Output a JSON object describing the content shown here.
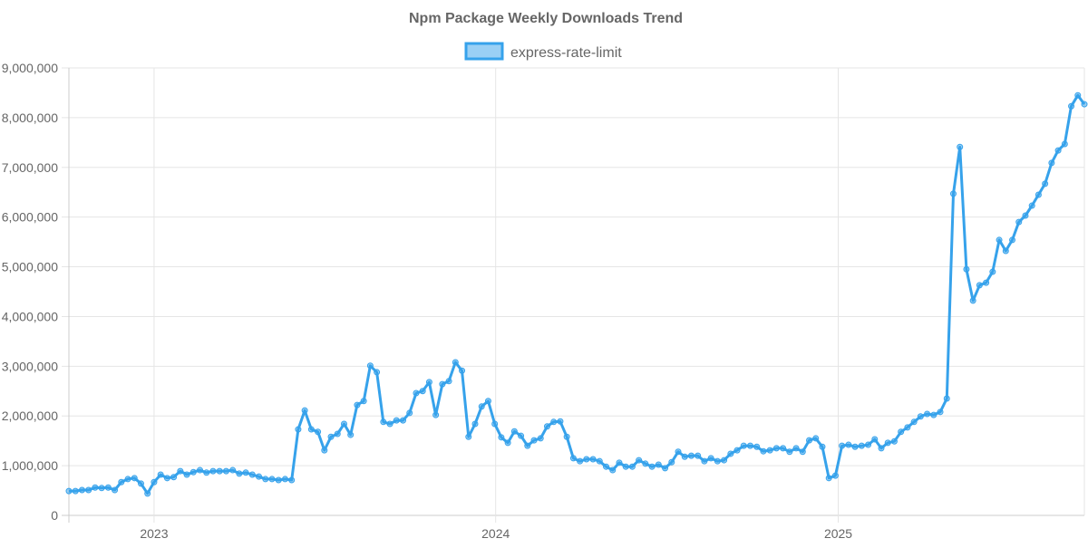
{
  "chart_data": {
    "type": "line",
    "title": "Npm Package Weekly Downloads Trend",
    "xlabel": "",
    "ylabel": "",
    "ylim": [
      0,
      9000000
    ],
    "y_ticks": [
      0,
      1000000,
      2000000,
      3000000,
      4000000,
      5000000,
      6000000,
      7000000,
      8000000,
      9000000
    ],
    "y_tick_labels": [
      "0",
      "1,000,000",
      "2,000,000",
      "3,000,000",
      "4,000,000",
      "5,000,000",
      "6,000,000",
      "7,000,000",
      "8,000,000",
      "9,000,000"
    ],
    "x_tick_labels": [
      "2023",
      "2024",
      "2025"
    ],
    "x_tick_dates": [
      "2023-01-01",
      "2024-01-01",
      "2025-01-01"
    ],
    "x_start_date": "2022-10-02",
    "x_interval_days": 7,
    "grid": true,
    "legend_position": "top",
    "colors": {
      "line": "#36a2eb",
      "fill": "rgba(54,162,235,0.5)",
      "grid": "#e5e5e5",
      "text": "#666666"
    },
    "series": [
      {
        "name": "express-rate-limit",
        "values": [
          490000,
          490000,
          510000,
          510000,
          560000,
          550000,
          560000,
          510000,
          670000,
          730000,
          750000,
          640000,
          440000,
          670000,
          820000,
          750000,
          770000,
          890000,
          820000,
          870000,
          910000,
          860000,
          890000,
          890000,
          890000,
          910000,
          840000,
          860000,
          820000,
          780000,
          730000,
          730000,
          710000,
          730000,
          710000,
          1730000,
          2110000,
          1730000,
          1680000,
          1310000,
          1580000,
          1640000,
          1840000,
          1620000,
          2220000,
          2300000,
          3010000,
          2880000,
          1880000,
          1840000,
          1910000,
          1910000,
          2060000,
          2460000,
          2500000,
          2680000,
          2020000,
          2640000,
          2700000,
          3080000,
          2910000,
          1580000,
          1840000,
          2190000,
          2300000,
          1840000,
          1570000,
          1460000,
          1690000,
          1600000,
          1400000,
          1510000,
          1550000,
          1790000,
          1880000,
          1890000,
          1580000,
          1150000,
          1090000,
          1130000,
          1130000,
          1090000,
          980000,
          910000,
          1060000,
          980000,
          980000,
          1110000,
          1040000,
          980000,
          1020000,
          950000,
          1070000,
          1280000,
          1180000,
          1200000,
          1200000,
          1090000,
          1150000,
          1090000,
          1110000,
          1240000,
          1310000,
          1400000,
          1400000,
          1380000,
          1290000,
          1310000,
          1350000,
          1350000,
          1280000,
          1350000,
          1280000,
          1510000,
          1550000,
          1380000,
          750000,
          800000,
          1400000,
          1420000,
          1380000,
          1400000,
          1420000,
          1530000,
          1350000,
          1460000,
          1490000,
          1680000,
          1770000,
          1880000,
          1990000,
          2040000,
          2020000,
          2080000,
          2350000,
          6470000,
          7410000,
          4950000,
          4320000,
          4630000,
          4680000,
          4900000,
          5540000,
          5320000,
          5540000,
          5900000,
          6030000,
          6230000,
          6450000,
          6670000,
          7090000,
          7340000,
          7470000,
          8230000,
          8450000,
          8270000
        ]
      }
    ]
  }
}
